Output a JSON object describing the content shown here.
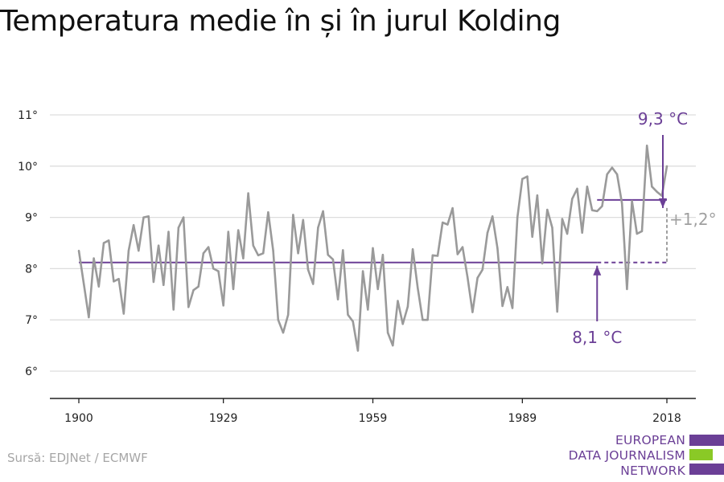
{
  "title": "Temperatura medie în și în jurul Kolding",
  "source": "Sursă: EDJNet / ECMWF",
  "logo": {
    "lines": [
      "EUROPEAN",
      "DATA JOURNALISM",
      "NETWORK"
    ],
    "colors": [
      "#6b3f96",
      "#8ac926",
      "#6b3f96"
    ]
  },
  "colors": {
    "series": "#9a9a9a",
    "accent": "#6b3f96",
    "grid": "#dddddd",
    "axis": "#222222",
    "diff_label": "#a0a0a0"
  },
  "chart_data": {
    "type": "line",
    "x_ticks": [
      1900,
      1929,
      1959,
      1989,
      2018
    ],
    "y_ticks": [
      6,
      7,
      8,
      9,
      10,
      11
    ],
    "y_tick_labels": [
      "6°",
      "7°",
      "8°",
      "9°",
      "10°",
      "11°"
    ],
    "xlim": [
      1894,
      2025
    ],
    "ylim": [
      5.4,
      11.3
    ],
    "grid": true,
    "series": [
      {
        "x": [
          1900,
          1901,
          1902,
          1903,
          1904,
          1905,
          1906,
          1907,
          1908,
          1909,
          1910,
          1911,
          1912,
          1913,
          1914,
          1915,
          1916,
          1917,
          1918,
          1919,
          1920,
          1921,
          1922,
          1923,
          1924,
          1925,
          1926,
          1927,
          1928,
          1929,
          1930,
          1931,
          1932,
          1933,
          1934,
          1935,
          1936,
          1937,
          1938,
          1939,
          1940,
          1941,
          1942,
          1943,
          1944,
          1945,
          1946,
          1947,
          1948,
          1949,
          1950,
          1951,
          1952,
          1953,
          1954,
          1955,
          1956,
          1957,
          1958,
          1959,
          1960,
          1961,
          1962,
          1963,
          1964,
          1965,
          1966,
          1967,
          1968,
          1969,
          1970,
          1971,
          1972,
          1973,
          1974,
          1975,
          1976,
          1977,
          1978,
          1979,
          1980,
          1981,
          1982,
          1983,
          1984,
          1985,
          1986,
          1987,
          1988,
          1989,
          1990,
          1991,
          1992,
          1993,
          1994,
          1995,
          1996,
          1997,
          1998,
          1999,
          2000,
          2001,
          2002,
          2003,
          2004,
          2005,
          2006,
          2007,
          2008,
          2009,
          2010,
          2011,
          2012,
          2013,
          2014,
          2015,
          2016,
          2017,
          2018
        ],
        "y": [
          8.35,
          7.7,
          7.05,
          8.2,
          7.65,
          8.5,
          8.55,
          7.75,
          7.8,
          7.12,
          8.35,
          8.85,
          8.35,
          9.0,
          9.02,
          7.74,
          8.45,
          7.68,
          8.72,
          7.2,
          8.8,
          9.0,
          7.25,
          7.58,
          7.65,
          8.3,
          8.42,
          8.0,
          7.95,
          7.28,
          8.72,
          7.6,
          8.75,
          8.2,
          9.47,
          8.45,
          8.26,
          8.3,
          9.1,
          8.35,
          7.0,
          6.75,
          7.1,
          9.05,
          8.3,
          8.95,
          7.98,
          7.7,
          8.8,
          9.12,
          8.27,
          8.18,
          7.4,
          8.36,
          7.1,
          6.97,
          6.4,
          7.95,
          7.2,
          8.4,
          7.6,
          8.27,
          6.75,
          6.5,
          7.37,
          6.92,
          7.26,
          8.38,
          7.62,
          7.0,
          7.0,
          8.26,
          8.25,
          8.9,
          8.86,
          9.18,
          8.28,
          8.42,
          7.83,
          7.15,
          7.82,
          7.98,
          8.7,
          9.02,
          8.4,
          7.27,
          7.64,
          7.23,
          9.0,
          9.75,
          9.8,
          8.62,
          9.43,
          8.1,
          9.15,
          8.8,
          7.16,
          8.97,
          8.68,
          9.36,
          9.56,
          8.7,
          9.6,
          9.14,
          9.12,
          9.22,
          9.84,
          9.97,
          9.84,
          9.27,
          7.6,
          9.32,
          8.68,
          8.73,
          10.4,
          9.6,
          9.5,
          9.42,
          10.0
        ]
      }
    ],
    "reference_lines": [
      {
        "label": "8,1 °C",
        "value": 8.12,
        "x_start": 1900,
        "x_solid_end": 2004,
        "x_end": 2018,
        "arrow_x": 2004
      },
      {
        "label": "9,3 °C",
        "value": 9.34,
        "x_start": 2004,
        "x_end": 2018,
        "arrow_x": 2018
      }
    ],
    "difference_label": "+1,2°"
  }
}
